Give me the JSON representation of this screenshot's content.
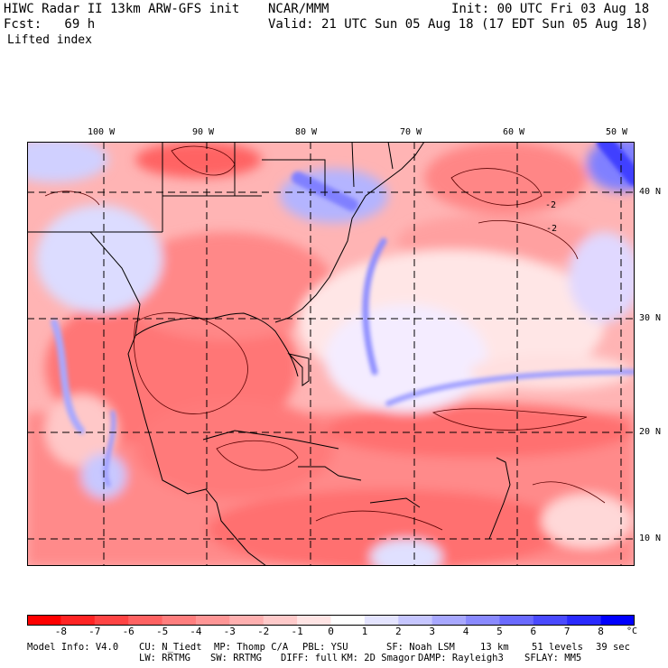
{
  "header": {
    "line1_left": "HIWC Radar II 13km ARW-GFS init",
    "line1_mid": "NCAR/MMM",
    "line1_right": "Init: 00 UTC Fri 03 Aug 18",
    "line2_left": "Fcst:   69 h",
    "line2_right": "Valid: 21 UTC Sun 05 Aug 18 (17 EDT Sun 05 Aug 18)",
    "field_name": "Lifted index"
  },
  "map": {
    "lon_labels": [
      "100 W",
      "90 W",
      "80 W",
      "70 W",
      "60 W",
      "50 W"
    ],
    "lat_labels": [
      "40 N",
      "30 N",
      "20 N",
      "10 N"
    ],
    "contour_labels": [
      "-2",
      "-2"
    ]
  },
  "colorbar": {
    "unit": "°C",
    "ticks": [
      "-8",
      "-7",
      "-6",
      "-5",
      "-4",
      "-3",
      "-2",
      "-1",
      "0",
      "1",
      "2",
      "3",
      "4",
      "5",
      "6",
      "7",
      "8"
    ],
    "colors": [
      "#ff0000",
      "#ff2424",
      "#ff4444",
      "#ff6262",
      "#ff7e7e",
      "#ff9696",
      "#ffb0b0",
      "#ffcaca",
      "#ffe4e4",
      "#ffffff",
      "#e4e4ff",
      "#c6c6ff",
      "#a8a8ff",
      "#8a8aff",
      "#6a6aff",
      "#4a4aff",
      "#2a2aff",
      "#0000ff"
    ]
  },
  "footer": {
    "line1": [
      "Model Info: V4.0",
      "CU: N_Tiedt",
      "MP: Thomp C/A",
      "PBL: YSU",
      "SF: Noah LSM",
      "13 km",
      "51 levels",
      "39 sec"
    ],
    "line2": [
      "LW: RRTMG",
      "SW: RRTMG",
      "DIFF: full",
      "KM: 2D Smagor",
      "DAMP: Rayleigh3",
      "SFLAY: MM5"
    ]
  }
}
